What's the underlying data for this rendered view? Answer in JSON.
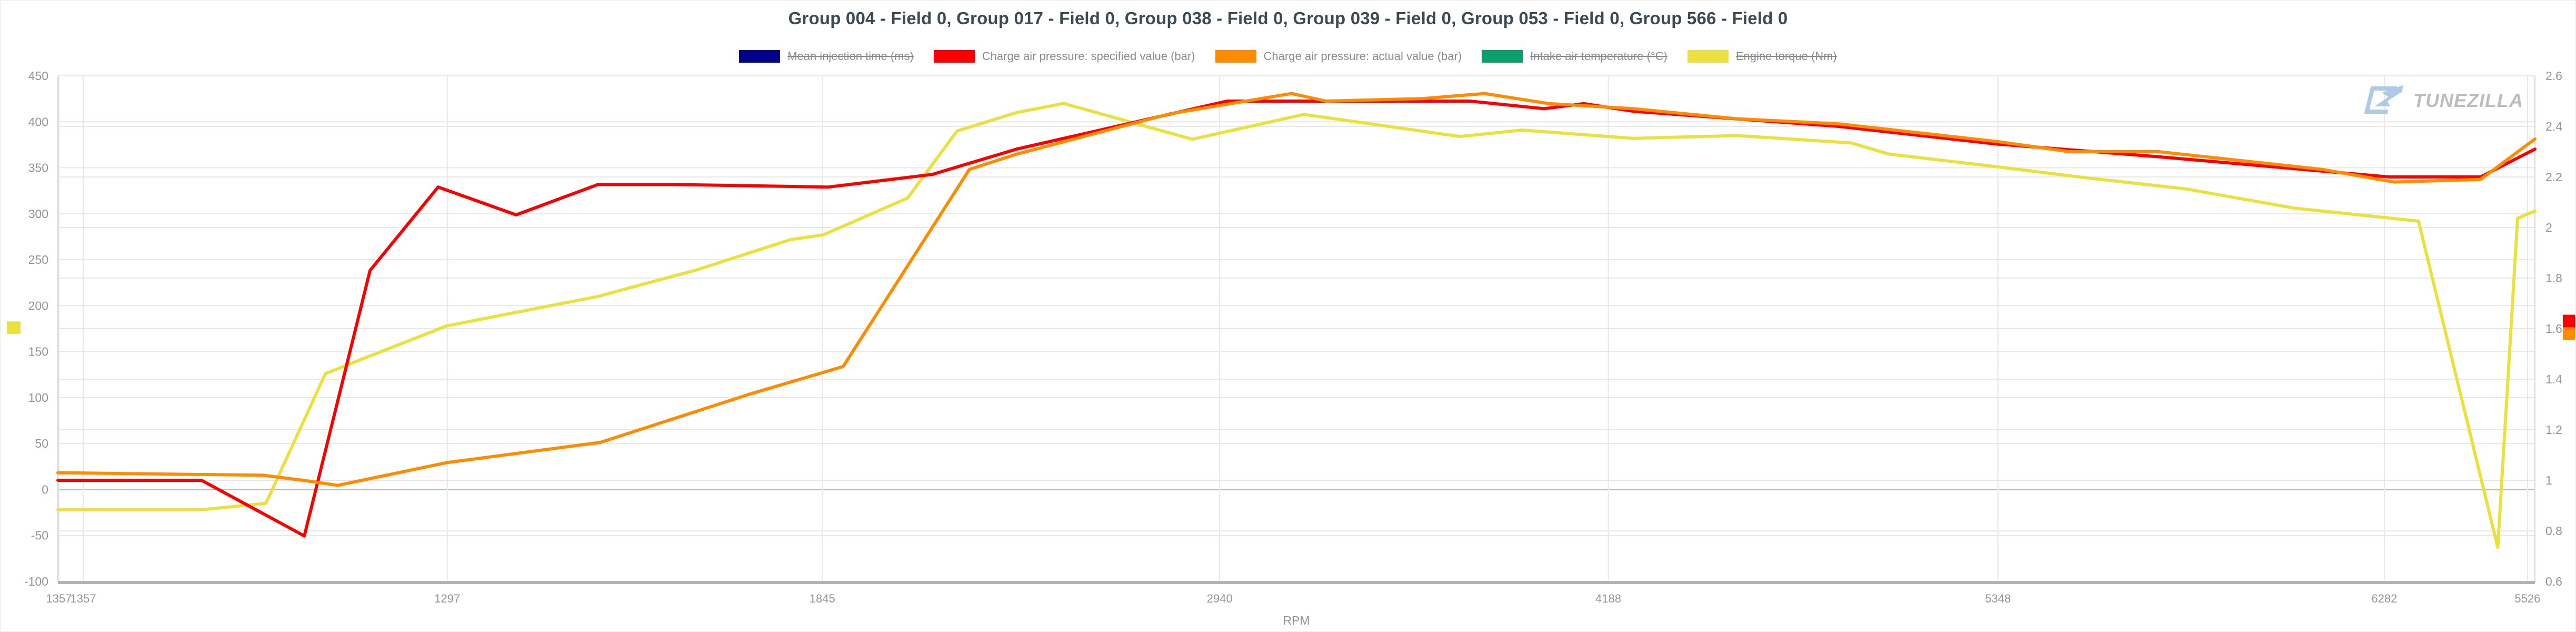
{
  "header": {
    "title": "Group 004 - Field 0, Group 017 - Field 0, Group 038 - Field 0, Group 039 - Field 0, Group 053 - Field 0, Group 566 - Field 0"
  },
  "watermark": {
    "brand": "TUNEZILLA"
  },
  "colors": {
    "navy": "#00008b",
    "red": "#fb0000",
    "orange": "#ff8c00",
    "green": "#0aa06e",
    "yellow": "#ebe13e",
    "grid": "#e7e7e7",
    "zero_line": "#bcbcbc",
    "axis_line": "#b3b3b3",
    "frame_line": "#d6d6d6",
    "tick_text": "#949494",
    "title_text": "#3b4a53",
    "legend_text": "#8b8b8b"
  },
  "legend": {
    "items": [
      {
        "label": "Mean injection time (ms)",
        "color": "#00008b",
        "disabled": true
      },
      {
        "label": "Charge air pressure: specified value (bar)",
        "color": "#fb0000",
        "disabled": false
      },
      {
        "label": "Charge air pressure: actual value (bar)",
        "color": "#ff8c00",
        "disabled": false
      },
      {
        "label": "Intake air temperature (°C)",
        "color": "#0aa06e",
        "disabled": true
      },
      {
        "label": "Engine torque (Nm)",
        "color": "#ebe13e",
        "disabled": true
      }
    ]
  },
  "chart_data": {
    "type": "line",
    "title": "Group 004 - Field 0, Group 017 - Field 0, Group 038 - Field 0, Group 039 - Field 0, Group 053 - Field 0, Group 566 - Field 0",
    "xlabel": "RPM",
    "grid": true,
    "legend_position": "top",
    "x_axis": {
      "label": "RPM",
      "type": "time-samples",
      "ticks": [
        {
          "label": "1357",
          "pos": 0.0004
        },
        {
          "label": "1357",
          "pos": 0.0102
        },
        {
          "label": "1297",
          "pos": 0.1572
        },
        {
          "label": "1845",
          "pos": 0.3086
        },
        {
          "label": "2940",
          "pos": 0.469
        },
        {
          "label": "4188",
          "pos": 0.6259
        },
        {
          "label": "5348",
          "pos": 0.7832
        },
        {
          "label": "6282",
          "pos": 0.9392
        },
        {
          "label": "5526",
          "pos": 0.997
        }
      ]
    },
    "y_axis_left": {
      "range": [
        -100,
        450
      ],
      "ticks": [
        {
          "label": "450",
          "value": 450
        },
        {
          "label": "400",
          "value": 400
        },
        {
          "label": "350",
          "value": 350
        },
        {
          "label": "300",
          "value": 300
        },
        {
          "label": "250",
          "value": 250
        },
        {
          "label": "200",
          "value": 200
        },
        {
          "label": "150",
          "value": 150
        },
        {
          "label": "100",
          "value": 100
        },
        {
          "label": "50",
          "value": 50
        },
        {
          "label": "0",
          "value": 0
        },
        {
          "label": "-50",
          "value": -50
        },
        {
          "label": "-100",
          "value": -100
        }
      ]
    },
    "y_axis_right": {
      "range": [
        0.6,
        2.6
      ],
      "ticks": [
        {
          "label": "2.6",
          "value": 2.6
        },
        {
          "label": "2.4",
          "value": 2.4
        },
        {
          "label": "2.2",
          "value": 2.2
        },
        {
          "label": "2",
          "value": 2.0
        },
        {
          "label": "1.8",
          "value": 1.8
        },
        {
          "label": "1.6",
          "value": 1.6
        },
        {
          "label": "1.4",
          "value": 1.4
        },
        {
          "label": "1.2",
          "value": 1.2
        },
        {
          "label": "1",
          "value": 1.0
        },
        {
          "label": "0.8",
          "value": 0.8
        },
        {
          "label": "0.6",
          "value": 0.6
        }
      ]
    },
    "series": [
      {
        "name": "Mean injection time (ms)",
        "color": "#00008b",
        "axis": "left",
        "visible": false,
        "points": []
      },
      {
        "name": "Charge air pressure: specified value (bar)",
        "color": "#fb0000",
        "axis": "right",
        "visible": true,
        "points": [
          [
            0.0,
            1.0
          ],
          [
            0.058,
            1.0
          ],
          [
            0.0995,
            0.78
          ],
          [
            0.126,
            1.83
          ],
          [
            0.1535,
            2.16
          ],
          [
            0.185,
            2.05
          ],
          [
            0.218,
            2.17
          ],
          [
            0.249,
            2.17
          ],
          [
            0.311,
            2.16
          ],
          [
            0.353,
            2.21
          ],
          [
            0.387,
            2.31
          ],
          [
            0.472,
            2.5
          ],
          [
            0.57,
            2.5
          ],
          [
            0.6,
            2.47
          ],
          [
            0.616,
            2.49
          ],
          [
            0.636,
            2.46
          ],
          [
            0.719,
            2.4
          ],
          [
            0.783,
            2.33
          ],
          [
            0.848,
            2.28
          ],
          [
            0.941,
            2.2
          ],
          [
            0.978,
            2.2
          ],
          [
            1.0,
            2.31
          ]
        ]
      },
      {
        "name": "Charge air pressure: actual value (bar)",
        "color": "#ff8c00",
        "axis": "right",
        "visible": true,
        "points": [
          [
            0.0,
            1.03
          ],
          [
            0.083,
            1.02
          ],
          [
            0.099,
            1.0
          ],
          [
            0.113,
            0.98
          ],
          [
            0.157,
            1.07
          ],
          [
            0.219,
            1.15
          ],
          [
            0.279,
            1.34
          ],
          [
            0.317,
            1.45
          ],
          [
            0.368,
            2.23
          ],
          [
            0.387,
            2.29
          ],
          [
            0.449,
            2.45
          ],
          [
            0.498,
            2.53
          ],
          [
            0.512,
            2.5
          ],
          [
            0.551,
            2.51
          ],
          [
            0.576,
            2.53
          ],
          [
            0.602,
            2.49
          ],
          [
            0.636,
            2.47
          ],
          [
            0.678,
            2.43
          ],
          [
            0.719,
            2.41
          ],
          [
            0.783,
            2.34
          ],
          [
            0.812,
            2.3
          ],
          [
            0.848,
            2.3
          ],
          [
            0.914,
            2.23
          ],
          [
            0.943,
            2.18
          ],
          [
            0.978,
            2.19
          ],
          [
            1.0,
            2.35
          ]
        ]
      },
      {
        "name": "Intake air temperature (°C)",
        "color": "#0aa06e",
        "axis": "left",
        "visible": false,
        "points": []
      },
      {
        "name": "Engine torque (Nm)",
        "color": "#ebe13e",
        "axis": "left",
        "visible": true,
        "points": [
          [
            0.0,
            -22
          ],
          [
            0.058,
            -22
          ],
          [
            0.084,
            -15
          ],
          [
            0.108,
            126
          ],
          [
            0.122,
            141
          ],
          [
            0.157,
            178
          ],
          [
            0.218,
            210
          ],
          [
            0.258,
            239
          ],
          [
            0.296,
            272
          ],
          [
            0.309,
            277
          ],
          [
            0.343,
            317
          ],
          [
            0.363,
            390
          ],
          [
            0.387,
            410
          ],
          [
            0.406,
            420
          ],
          [
            0.458,
            381
          ],
          [
            0.503,
            408
          ],
          [
            0.566,
            384
          ],
          [
            0.591,
            391
          ],
          [
            0.636,
            382
          ],
          [
            0.678,
            385
          ],
          [
            0.724,
            377
          ],
          [
            0.739,
            365
          ],
          [
            0.783,
            351
          ],
          [
            0.819,
            339
          ],
          [
            0.859,
            327
          ],
          [
            0.903,
            306
          ],
          [
            0.953,
            292
          ],
          [
            0.985,
            -63
          ],
          [
            0.993,
            295
          ],
          [
            1.0,
            303
          ]
        ]
      }
    ],
    "value_markers": [
      {
        "series": "Engine torque (Nm)",
        "edge": "left",
        "axis": "left",
        "value": 176,
        "color": "#ebe13e"
      },
      {
        "series": "Charge air pressure: specified value (bar)",
        "edge": "right",
        "axis": "right",
        "value": 1.63,
        "color": "#fb0000"
      },
      {
        "series": "Charge air pressure: actual value (bar)",
        "edge": "right",
        "axis": "right",
        "value": 1.58,
        "color": "#ff8c00"
      }
    ]
  }
}
